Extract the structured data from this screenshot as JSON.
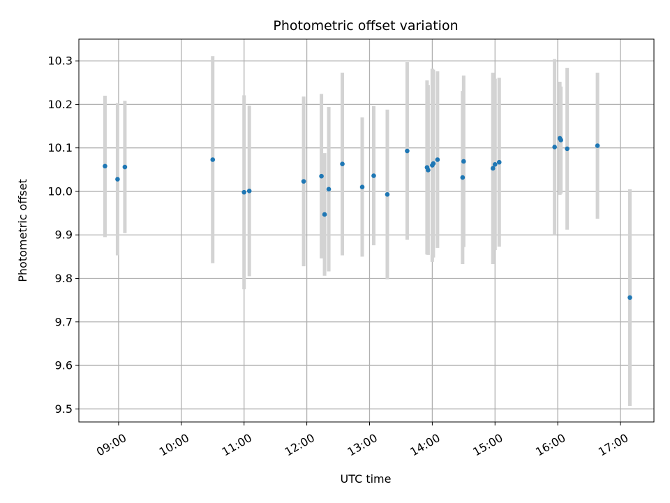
{
  "chart_data": {
    "type": "scatter",
    "title": "Photometric offset variation",
    "xlabel": "UTC time",
    "ylabel": "Photometric offset",
    "x_axis": "time",
    "xlim": [
      "08:22",
      "17:32"
    ],
    "ylim": [
      9.47,
      10.35
    ],
    "x_ticks": [
      "09:00",
      "10:00",
      "11:00",
      "12:00",
      "13:00",
      "14:00",
      "15:00",
      "16:00",
      "17:00"
    ],
    "y_ticks": [
      "9.5",
      "9.6",
      "9.7",
      "9.8",
      "9.9",
      "10.0",
      "10.1",
      "10.2",
      "10.3"
    ],
    "grid": true,
    "colors": {
      "point": "#1f77b4",
      "errorbar": "#d3d3d3",
      "grid": "#b0b0b0"
    },
    "series": [
      {
        "points": [
          {
            "t": "08:47",
            "y": 10.058,
            "lo": 9.895,
            "hi": 10.22
          },
          {
            "t": "08:59",
            "y": 10.028,
            "lo": 9.853,
            "hi": 10.203
          },
          {
            "t": "09:06",
            "y": 10.056,
            "lo": 9.904,
            "hi": 10.208
          },
          {
            "t": "10:30",
            "y": 10.073,
            "lo": 9.835,
            "hi": 10.311
          },
          {
            "t": "11:00",
            "y": 9.998,
            "lo": 9.775,
            "hi": 10.221
          },
          {
            "t": "11:05",
            "y": 10.001,
            "lo": 9.805,
            "hi": 10.197
          },
          {
            "t": "11:57",
            "y": 10.023,
            "lo": 9.828,
            "hi": 10.218
          },
          {
            "t": "12:14",
            "y": 10.035,
            "lo": 9.846,
            "hi": 10.224
          },
          {
            "t": "12:17",
            "y": 9.947,
            "lo": 9.806,
            "hi": 10.088
          },
          {
            "t": "12:21",
            "y": 10.005,
            "lo": 9.816,
            "hi": 10.194
          },
          {
            "t": "12:34",
            "y": 10.063,
            "lo": 9.853,
            "hi": 10.273
          },
          {
            "t": "12:53",
            "y": 10.01,
            "lo": 9.85,
            "hi": 10.17
          },
          {
            "t": "13:04",
            "y": 10.036,
            "lo": 9.876,
            "hi": 10.196
          },
          {
            "t": "13:17",
            "y": 9.993,
            "lo": 9.798,
            "hi": 10.188
          },
          {
            "t": "13:36",
            "y": 10.093,
            "lo": 9.889,
            "hi": 10.297
          },
          {
            "t": "13:55",
            "y": 10.055,
            "lo": 9.855,
            "hi": 10.255
          },
          {
            "t": "13:56",
            "y": 10.049,
            "lo": 9.854,
            "hi": 10.244
          },
          {
            "t": "14:00",
            "y": 10.06,
            "lo": 9.838,
            "hi": 10.282
          },
          {
            "t": "14:01",
            "y": 10.064,
            "lo": 9.848,
            "hi": 10.28
          },
          {
            "t": "14:05",
            "y": 10.073,
            "lo": 9.87,
            "hi": 10.276
          },
          {
            "t": "14:29",
            "y": 10.032,
            "lo": 9.833,
            "hi": 10.231
          },
          {
            "t": "14:30",
            "y": 10.069,
            "lo": 9.872,
            "hi": 10.266
          },
          {
            "t": "14:58",
            "y": 10.053,
            "lo": 9.833,
            "hi": 10.273
          },
          {
            "t": "15:00",
            "y": 10.062,
            "lo": 9.865,
            "hi": 10.259
          },
          {
            "t": "15:04",
            "y": 10.067,
            "lo": 9.873,
            "hi": 10.261
          },
          {
            "t": "15:57",
            "y": 10.102,
            "lo": 9.9,
            "hi": 10.304
          },
          {
            "t": "16:02",
            "y": 10.122,
            "lo": 9.992,
            "hi": 10.252
          },
          {
            "t": "16:03",
            "y": 10.118,
            "lo": 9.995,
            "hi": 10.241
          },
          {
            "t": "16:09",
            "y": 10.098,
            "lo": 9.912,
            "hi": 10.284
          },
          {
            "t": "16:38",
            "y": 10.105,
            "lo": 9.937,
            "hi": 10.273
          },
          {
            "t": "17:09",
            "y": 9.756,
            "lo": 9.507,
            "hi": 10.005
          }
        ]
      }
    ]
  }
}
